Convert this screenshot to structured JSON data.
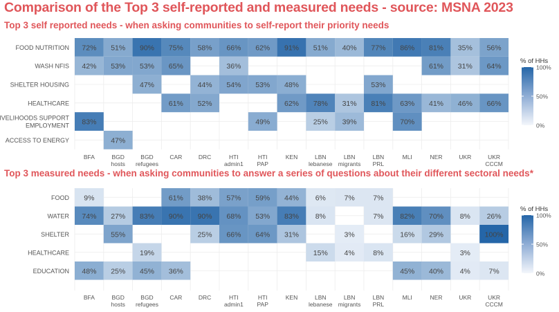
{
  "page": {
    "title": "Comparison of the Top 3 self-reported and measured needs  - source: MSNA 2023",
    "colors": {
      "title": "#e0565a",
      "scale_high": "#2566a8",
      "scale_low": "#eaf0f8"
    }
  },
  "chart_data": [
    {
      "type": "heatmap",
      "title": "Top 3 self reported needs - when asking communities to self-report their priority needs",
      "legend_title": "% of HHs",
      "legend_ticks": [
        "100%",
        "50%",
        "0%"
      ],
      "value_range": [
        0,
        100
      ],
      "columns": [
        "BFA",
        "BGD hosts",
        "BGD refugees",
        "CAR",
        "DRC",
        "HTI admin1",
        "HTI PAP",
        "KEN",
        "LBN lebanese",
        "LBN migrants",
        "LBN PRL",
        "MLI",
        "NER",
        "UKR",
        "UKR CCCM"
      ],
      "rows": [
        "FOOD NUTRITION",
        "WASH NFIS",
        "SHELTER HOUSING",
        "HEALTHCARE",
        "LIVELIHOODS SUPPORT EMPLOYMENT",
        "ACCESS TO ENERGY"
      ],
      "values": [
        [
          72,
          51,
          90,
          75,
          58,
          66,
          62,
          91,
          51,
          40,
          77,
          86,
          81,
          35,
          56
        ],
        [
          42,
          53,
          53,
          65,
          null,
          36,
          null,
          null,
          null,
          null,
          null,
          null,
          61,
          31,
          64
        ],
        [
          null,
          null,
          47,
          null,
          44,
          54,
          53,
          48,
          null,
          null,
          53,
          null,
          null,
          null,
          null
        ],
        [
          null,
          null,
          null,
          61,
          52,
          null,
          null,
          62,
          78,
          31,
          81,
          63,
          41,
          46,
          66
        ],
        [
          83,
          null,
          null,
          null,
          null,
          null,
          49,
          null,
          25,
          39,
          null,
          70,
          null,
          null,
          null
        ],
        [
          null,
          47,
          null,
          null,
          null,
          null,
          null,
          null,
          null,
          null,
          null,
          null,
          null,
          null,
          null
        ]
      ]
    },
    {
      "type": "heatmap",
      "title": "Top 3 measured needs - when asking communities to answer a series of questions about their different sectoral needs*",
      "legend_title": "% of HHs",
      "legend_ticks": [
        "100%",
        "50%",
        "0%"
      ],
      "value_range": [
        0,
        100
      ],
      "columns": [
        "BFA",
        "BGD hosts",
        "BGD refugees",
        "CAR",
        "DRC",
        "HTI admin1",
        "HTI PAP",
        "KEN",
        "LBN lebanese",
        "LBN migrants",
        "LBN PRL",
        "MLI",
        "NER",
        "UKR",
        "UKR CCCM"
      ],
      "rows": [
        "FOOD",
        "WATER",
        "SHELTER",
        "HEALTHCARE",
        "EDUCATION"
      ],
      "values": [
        [
          9,
          null,
          null,
          61,
          38,
          57,
          59,
          44,
          6,
          7,
          7,
          null,
          null,
          null,
          null
        ],
        [
          74,
          27,
          83,
          90,
          90,
          68,
          53,
          83,
          8,
          null,
          7,
          82,
          70,
          8,
          26
        ],
        [
          null,
          55,
          null,
          null,
          25,
          66,
          64,
          31,
          null,
          3,
          null,
          16,
          29,
          null,
          100
        ],
        [
          null,
          null,
          19,
          null,
          null,
          null,
          null,
          null,
          15,
          4,
          8,
          null,
          null,
          3,
          null
        ],
        [
          48,
          25,
          45,
          36,
          null,
          null,
          null,
          null,
          null,
          null,
          null,
          45,
          40,
          4,
          7
        ]
      ]
    }
  ]
}
